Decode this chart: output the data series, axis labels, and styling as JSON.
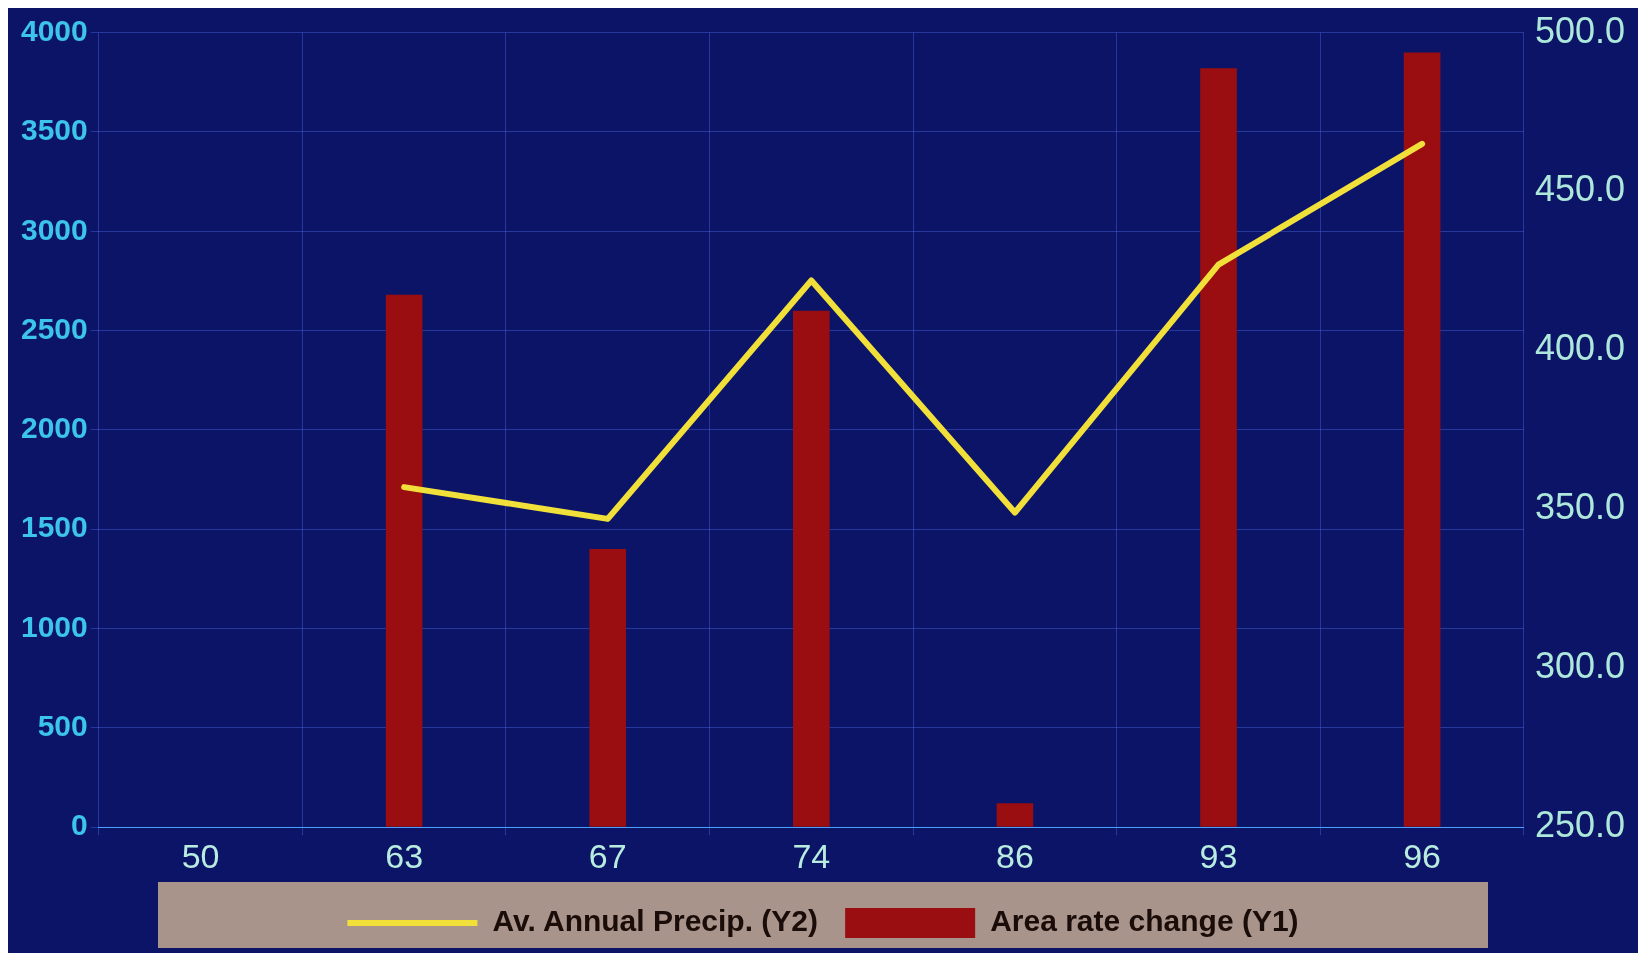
{
  "chart_data": {
    "type": "bar",
    "categories": [
      "50",
      "63",
      "67",
      "74",
      "86",
      "93",
      "96"
    ],
    "series": [
      {
        "name": "Av. Annual Precip. (Y2)",
        "type": "line",
        "axis": "y2",
        "color": "#f2e03a",
        "values": [
          null,
          357,
          347,
          422,
          349,
          427,
          465
        ]
      },
      {
        "name": "Area rate change (Y1)",
        "axis": "y",
        "color": "#9a0d10",
        "values": [
          0,
          2680,
          1400,
          2600,
          120,
          3820,
          3900
        ]
      }
    ],
    "ylim": [
      0,
      4000
    ],
    "yticks": [
      0,
      500,
      1000,
      1500,
      2000,
      2500,
      3000,
      3500,
      4000
    ],
    "y2lim": [
      250,
      500
    ],
    "y2ticks": [
      {
        "value": 250,
        "label": "250.0"
      },
      {
        "value": 300,
        "label": "300.0"
      },
      {
        "value": 350,
        "label": "350.0"
      },
      {
        "value": 400,
        "label": "400.0"
      },
      {
        "value": 450,
        "label": "450.0"
      },
      {
        "value": 500,
        "label": "500.0"
      }
    ],
    "grid": true,
    "legend": "bottom",
    "marker": "none",
    "line_style": "solid"
  }
}
